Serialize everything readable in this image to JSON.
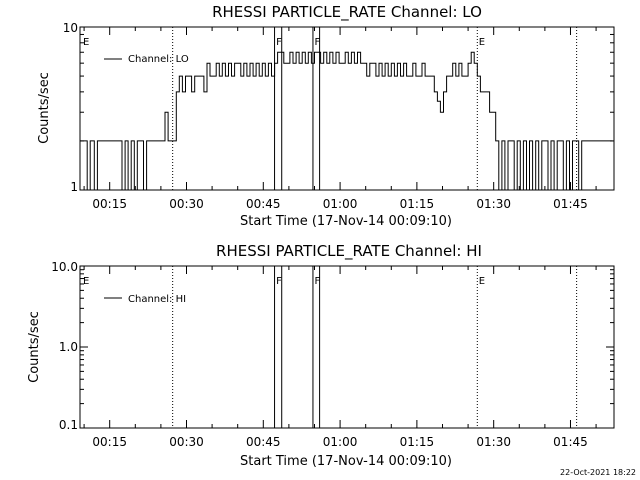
{
  "chart_data": [
    {
      "type": "line",
      "title": "RHESSI PARTICLE_RATE Channel: LO",
      "xlabel": "Start Time (17-Nov-14 00:09:10)",
      "ylabel": "Counts/sec",
      "yscale": "log",
      "ylim": [
        1,
        10
      ],
      "ytick_labels": [
        "1",
        "10"
      ],
      "xlim_minutes": [
        9.2,
        113.5
      ],
      "xtick_labels": [
        "00:15",
        "00:30",
        "00:45",
        "01:00",
        "01:15",
        "01:30",
        "01:45"
      ],
      "xtick_minutes": [
        15,
        30,
        45,
        60,
        75,
        90,
        105
      ],
      "legend": {
        "label": "Channel: LO",
        "position": "top-left"
      },
      "grid": false,
      "dotted_lines_minutes": [
        27.3,
        86.8,
        106.2
      ],
      "solid_lines_minutes": [
        47.2,
        48.6,
        54.7,
        56.0
      ],
      "markers": [
        {
          "label": "E",
          "minute": 9.6
        },
        {
          "label": "F",
          "minute": 47.3
        },
        {
          "label": "F",
          "minute": 54.8
        },
        {
          "label": "E",
          "minute": 86.9
        }
      ],
      "series": [
        {
          "label": "Channel: LO",
          "points": [
            [
              9.2,
              2
            ],
            [
              10,
              2
            ],
            [
              10.6,
              1
            ],
            [
              11.2,
              2
            ],
            [
              12,
              1
            ],
            [
              12.6,
              2
            ],
            [
              13.2,
              2
            ],
            [
              13.8,
              2
            ],
            [
              14.4,
              2
            ],
            [
              15,
              2
            ],
            [
              15.6,
              2
            ],
            [
              16.2,
              2
            ],
            [
              16.8,
              2
            ],
            [
              17.4,
              1
            ],
            [
              18,
              2
            ],
            [
              18.6,
              1
            ],
            [
              19.2,
              2
            ],
            [
              19.8,
              1
            ],
            [
              20.4,
              2
            ],
            [
              21,
              2
            ],
            [
              21.6,
              1
            ],
            [
              22.2,
              2
            ],
            [
              22.8,
              2
            ],
            [
              23.4,
              2
            ],
            [
              24,
              2
            ],
            [
              24.6,
              2
            ],
            [
              25.2,
              2
            ],
            [
              25.8,
              3
            ],
            [
              26.4,
              2
            ],
            [
              27,
              2
            ],
            [
              27.6,
              2
            ],
            [
              28,
              4
            ],
            [
              28.6,
              5
            ],
            [
              29.2,
              4
            ],
            [
              29.8,
              5
            ],
            [
              30.4,
              5
            ],
            [
              31,
              4
            ],
            [
              31.6,
              5
            ],
            [
              32.2,
              5
            ],
            [
              32.8,
              5
            ],
            [
              33.4,
              4
            ],
            [
              34,
              6
            ],
            [
              34.6,
              5
            ],
            [
              35.2,
              5
            ],
            [
              35.8,
              6
            ],
            [
              36.4,
              5
            ],
            [
              37,
              6
            ],
            [
              37.6,
              5
            ],
            [
              38.2,
              6
            ],
            [
              38.8,
              5
            ],
            [
              39.4,
              6
            ],
            [
              40,
              6
            ],
            [
              40.6,
              5
            ],
            [
              41.2,
              6
            ],
            [
              41.8,
              5
            ],
            [
              42.4,
              6
            ],
            [
              43,
              5
            ],
            [
              43.6,
              6
            ],
            [
              44.2,
              5
            ],
            [
              44.8,
              6
            ],
            [
              45.4,
              5
            ],
            [
              46,
              6
            ],
            [
              46.6,
              5
            ],
            [
              47.2,
              6
            ],
            [
              47.8,
              7
            ],
            [
              48.4,
              7
            ],
            [
              49,
              6
            ],
            [
              49.6,
              6
            ],
            [
              50.2,
              7
            ],
            [
              50.8,
              6
            ],
            [
              51.4,
              7
            ],
            [
              52,
              6
            ],
            [
              52.6,
              7
            ],
            [
              53.2,
              6
            ],
            [
              53.8,
              7
            ],
            [
              54.4,
              6
            ],
            [
              55,
              7
            ],
            [
              55.6,
              7
            ],
            [
              56.2,
              6
            ],
            [
              56.8,
              7
            ],
            [
              57.4,
              6
            ],
            [
              58,
              7
            ],
            [
              58.6,
              6
            ],
            [
              59.2,
              7
            ],
            [
              59.8,
              6
            ],
            [
              60.4,
              6
            ],
            [
              61,
              7
            ],
            [
              61.6,
              6
            ],
            [
              62.2,
              7
            ],
            [
              62.8,
              6
            ],
            [
              63.4,
              7
            ],
            [
              64,
              6
            ],
            [
              64.6,
              6
            ],
            [
              65.2,
              5
            ],
            [
              65.8,
              6
            ],
            [
              66.4,
              6
            ],
            [
              67,
              5
            ],
            [
              67.6,
              6
            ],
            [
              68.2,
              5
            ],
            [
              68.8,
              6
            ],
            [
              69.4,
              5
            ],
            [
              70,
              6
            ],
            [
              70.6,
              5
            ],
            [
              71.2,
              6
            ],
            [
              71.8,
              5
            ],
            [
              72.4,
              6
            ],
            [
              73,
              5
            ],
            [
              73.6,
              5
            ],
            [
              74.2,
              6
            ],
            [
              74.8,
              5
            ],
            [
              75.4,
              5
            ],
            [
              76,
              6
            ],
            [
              76.6,
              5
            ],
            [
              77.2,
              5
            ],
            [
              77.8,
              5
            ],
            [
              78.4,
              4
            ],
            [
              79,
              3.5
            ],
            [
              79.6,
              3
            ],
            [
              80.2,
              4
            ],
            [
              80.8,
              5
            ],
            [
              81.4,
              5
            ],
            [
              82,
              6
            ],
            [
              82.6,
              5
            ],
            [
              83.2,
              6
            ],
            [
              83.8,
              5
            ],
            [
              84.4,
              5
            ],
            [
              85,
              6
            ],
            [
              85.6,
              7
            ],
            [
              86.2,
              6
            ],
            [
              86.8,
              5
            ],
            [
              87.4,
              4
            ],
            [
              88,
              4
            ],
            [
              88.6,
              4
            ],
            [
              89.2,
              3
            ],
            [
              89.8,
              3
            ],
            [
              90.4,
              2
            ],
            [
              91,
              1
            ],
            [
              91.6,
              2
            ],
            [
              92.2,
              1
            ],
            [
              92.8,
              2
            ],
            [
              93.4,
              2
            ],
            [
              94,
              1
            ],
            [
              94.6,
              2
            ],
            [
              95.2,
              1
            ],
            [
              95.8,
              2
            ],
            [
              96.4,
              1
            ],
            [
              97,
              2
            ],
            [
              97.6,
              1
            ],
            [
              98.2,
              2
            ],
            [
              98.8,
              1
            ],
            [
              99.4,
              2
            ],
            [
              100,
              2
            ],
            [
              100.6,
              1
            ],
            [
              101.2,
              2
            ],
            [
              101.8,
              1
            ],
            [
              102.4,
              2
            ],
            [
              103,
              2
            ],
            [
              103.6,
              1
            ],
            [
              104.2,
              2
            ],
            [
              104.8,
              1
            ],
            [
              105.4,
              2
            ],
            [
              106,
              2
            ],
            [
              106.6,
              1
            ],
            [
              107.2,
              2
            ],
            [
              107.8,
              2
            ],
            [
              108.4,
              2
            ],
            [
              109,
              2
            ],
            [
              109.6,
              2
            ],
            [
              110.2,
              2
            ],
            [
              110.8,
              2
            ],
            [
              111.4,
              2
            ],
            [
              112,
              2
            ],
            [
              112.6,
              2
            ],
            [
              113.2,
              2
            ]
          ]
        }
      ]
    },
    {
      "type": "line",
      "title": "RHESSI PARTICLE_RATE Channel: HI",
      "xlabel": "Start Time (17-Nov-14 00:09:10)",
      "ylabel": "Counts/sec",
      "yscale": "log",
      "ylim": [
        0.1,
        10
      ],
      "ytick_labels": [
        "0.1",
        "1.0",
        "10.0"
      ],
      "xlim_minutes": [
        9.2,
        113.5
      ],
      "xtick_labels": [
        "00:15",
        "00:30",
        "00:45",
        "01:00",
        "01:15",
        "01:30",
        "01:45"
      ],
      "xtick_minutes": [
        15,
        30,
        45,
        60,
        75,
        90,
        105
      ],
      "legend": {
        "label": "Channel: HI",
        "position": "top-left"
      },
      "grid": false,
      "dotted_lines_minutes": [
        27.3,
        86.8,
        106.2
      ],
      "solid_lines_minutes": [
        47.2,
        48.6,
        54.7,
        56.0
      ],
      "markers": [
        {
          "label": "E",
          "minute": 9.6
        },
        {
          "label": "F",
          "minute": 47.3
        },
        {
          "label": "F",
          "minute": 54.8
        },
        {
          "label": "E",
          "minute": 86.9
        }
      ],
      "series": [
        {
          "label": "Channel: HI",
          "points": []
        }
      ]
    }
  ],
  "footer": {
    "timestamp": "22-Oct-2021 18:22"
  }
}
